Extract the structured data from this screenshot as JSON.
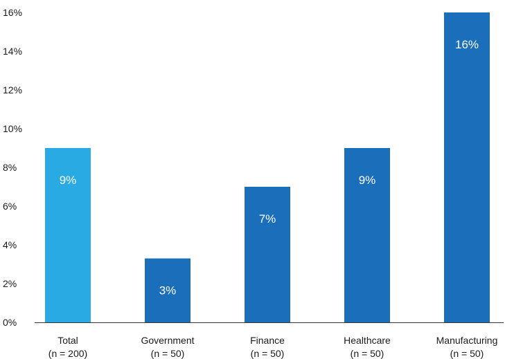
{
  "chart_data": {
    "type": "bar",
    "title": "",
    "xlabel": "",
    "ylabel": "",
    "categories": [
      "Total",
      "Government",
      "Finance",
      "Healthcare",
      "Manufacturing"
    ],
    "category_notes": [
      "(n = 200)",
      "(n = 50)",
      "(n = 50)",
      "(n = 50)",
      "(n = 50)"
    ],
    "values": [
      9,
      3.3,
      7,
      9,
      16
    ],
    "data_labels": [
      "9%",
      "3%",
      "7%",
      "9%",
      "16%"
    ],
    "bar_colors": [
      "#29aae2",
      "#1b6fba",
      "#1b6fba",
      "#1b6fba",
      "#1b6fba"
    ],
    "ylim": [
      0,
      16
    ],
    "yticks": [
      0,
      2,
      4,
      6,
      8,
      10,
      12,
      14,
      16
    ],
    "ytick_labels": [
      "0%",
      "2%",
      "4%",
      "6%",
      "8%",
      "10%",
      "12%",
      "14%",
      "16%"
    ],
    "grid": false,
    "legend": "none"
  },
  "colors": {
    "axis": "#333333",
    "tick_text": "#1a1a1a",
    "label_text": "#ffffff"
  }
}
